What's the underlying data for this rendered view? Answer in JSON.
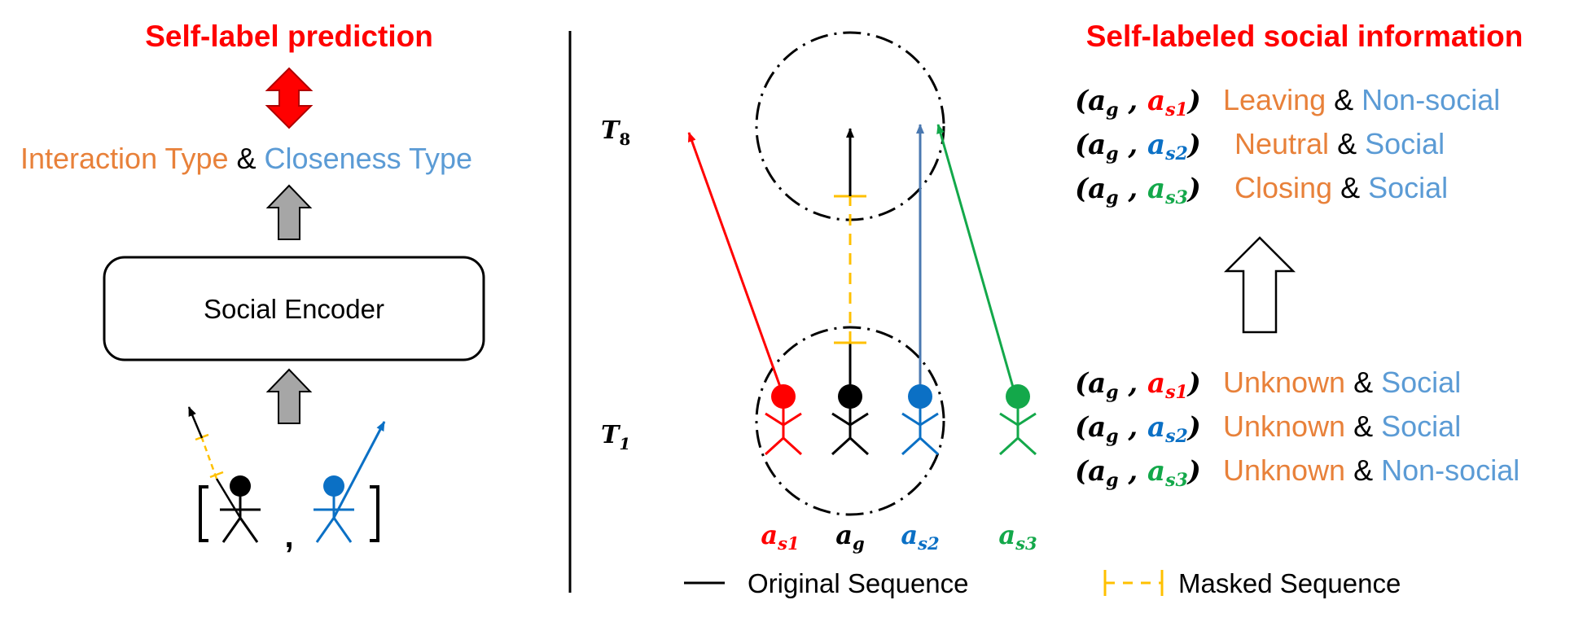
{
  "left": {
    "title": "Self-label prediction",
    "interaction_type": "Interaction Type",
    "amp": "&",
    "closeness_type": "Closeness Type",
    "encoder": "Social Encoder",
    "comma": ","
  },
  "middle": {
    "time_top": {
      "main": "T",
      "sub": "8"
    },
    "time_bottom": {
      "main": "T",
      "sub": "1"
    },
    "agents": [
      {
        "main": "a",
        "sub": "s1",
        "color": "#ff0000"
      },
      {
        "main": "a",
        "sub": "g",
        "color": "#000000"
      },
      {
        "main": "a",
        "sub": "s2",
        "color": "#0b70c5"
      },
      {
        "main": "a",
        "sub": "s3",
        "color": "#13a84a"
      }
    ],
    "legend": {
      "original": "Original Sequence",
      "masked": "Masked Sequence"
    }
  },
  "right": {
    "title": "Self-labeled social information",
    "output_rows": [
      {
        "agent_sub": "s1",
        "agent_color": "#ff0000",
        "interaction": "Leaving",
        "closeness": "Non-social"
      },
      {
        "agent_sub": "s2",
        "agent_color": "#0b70c5",
        "interaction": "Neutral",
        "closeness": "Social"
      },
      {
        "agent_sub": "s3",
        "agent_color": "#13a84a",
        "interaction": "Closing",
        "closeness": "Social"
      }
    ],
    "input_rows": [
      {
        "agent_sub": "s1",
        "agent_color": "#ff0000",
        "interaction": "Unknown",
        "closeness": "Social"
      },
      {
        "agent_sub": "s2",
        "agent_color": "#0b70c5",
        "interaction": "Unknown",
        "closeness": "Social"
      },
      {
        "agent_sub": "s3",
        "agent_color": "#13a84a",
        "interaction": "Unknown",
        "closeness": "Non-social"
      }
    ],
    "pair": {
      "open": "(",
      "ag_main": "a",
      "ag_sub": "g",
      "sep": ",",
      "agent_main": "a",
      "close": ")",
      "amp": "&"
    }
  },
  "colors": {
    "title_red": "#ff0000",
    "interaction_orange": "#e8813a",
    "closeness_blue": "#5b9bd5",
    "mask_yellow": "#ffc000",
    "gray_arrow": "#a6a6a6",
    "black": "#000000"
  }
}
